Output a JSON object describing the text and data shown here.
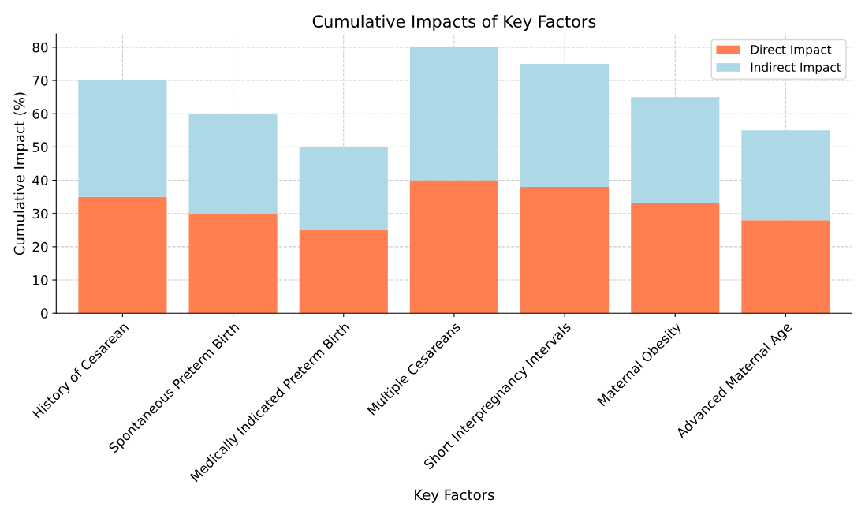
{
  "chart_data": {
    "type": "bar",
    "title": "Cumulative Impacts of Key Factors",
    "xlabel": "Key Factors",
    "ylabel": "Cumulative Impact (%)",
    "categories": [
      "History of Cesarean",
      "Spontaneous Preterm Birth",
      "Medically Indicated Preterm Birth",
      "Multiple Cesareans",
      "Short Interpregnancy Intervals",
      "Maternal Obesity",
      "Advanced Maternal Age"
    ],
    "series": [
      {
        "name": "Direct Impact",
        "color": "#ff7f50",
        "values": [
          35,
          30,
          25,
          40,
          38,
          33,
          28
        ]
      },
      {
        "name": "Indirect Impact",
        "color": "#add8e6",
        "values": [
          35,
          30,
          25,
          40,
          37,
          32,
          27
        ]
      }
    ],
    "stacked": true,
    "ylim": [
      0,
      84
    ],
    "yticks": [
      0,
      10,
      20,
      30,
      40,
      50,
      60,
      70,
      80
    ],
    "grid": true,
    "legend": "top right"
  }
}
